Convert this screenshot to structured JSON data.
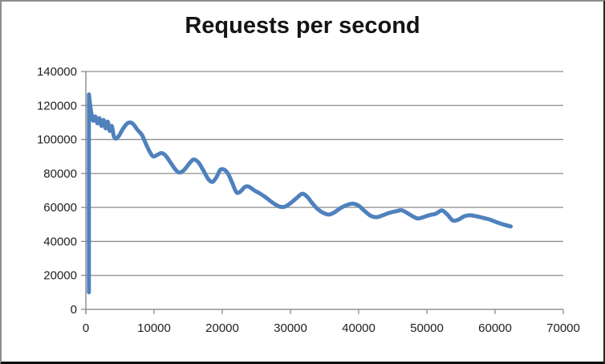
{
  "chart_data": {
    "type": "line",
    "title": "Requests per second",
    "xlabel": "",
    "ylabel": "",
    "xlim": [
      0,
      70000
    ],
    "ylim": [
      0,
      140000
    ],
    "x_ticks": [
      0,
      10000,
      20000,
      30000,
      40000,
      50000,
      60000,
      70000
    ],
    "y_ticks": [
      0,
      20000,
      40000,
      60000,
      80000,
      100000,
      120000,
      140000
    ],
    "grid": "horizontal",
    "legend_position": "none",
    "series": [
      {
        "name": "Requests per second",
        "color": "#4F81BD",
        "stroke_width": 5,
        "smooth": true,
        "points": [
          [
            450,
            10000
          ],
          [
            450,
            126500
          ],
          [
            700,
            118000
          ],
          [
            900,
            113500
          ],
          [
            1100,
            111000
          ],
          [
            1400,
            113500
          ],
          [
            1700,
            109500
          ],
          [
            2000,
            112500
          ],
          [
            2300,
            108000
          ],
          [
            2600,
            111500
          ],
          [
            2900,
            106500
          ],
          [
            3200,
            110500
          ],
          [
            3500,
            105000
          ],
          [
            3800,
            108000
          ],
          [
            4100,
            102000
          ],
          [
            4450,
            100500
          ],
          [
            4900,
            102500
          ],
          [
            5400,
            106000
          ],
          [
            6000,
            109200
          ],
          [
            6500,
            110000
          ],
          [
            7000,
            108800
          ],
          [
            7600,
            105500
          ],
          [
            8200,
            102800
          ],
          [
            8800,
            97500
          ],
          [
            9400,
            92500
          ],
          [
            9900,
            90000
          ],
          [
            10500,
            91000
          ],
          [
            11100,
            92000
          ],
          [
            11700,
            90500
          ],
          [
            12400,
            86500
          ],
          [
            13100,
            82500
          ],
          [
            13700,
            80500
          ],
          [
            14400,
            82000
          ],
          [
            15100,
            85500
          ],
          [
            15800,
            88200
          ],
          [
            16500,
            86500
          ],
          [
            17200,
            82000
          ],
          [
            17900,
            77000
          ],
          [
            18500,
            75000
          ],
          [
            19100,
            77500
          ],
          [
            19700,
            82000
          ],
          [
            20300,
            82200
          ],
          [
            20900,
            79500
          ],
          [
            21500,
            74000
          ],
          [
            22100,
            68800
          ],
          [
            22700,
            69500
          ],
          [
            23300,
            72000
          ],
          [
            23900,
            72200
          ],
          [
            24700,
            70000
          ],
          [
            25600,
            68000
          ],
          [
            26500,
            65500
          ],
          [
            27500,
            62500
          ],
          [
            28400,
            60500
          ],
          [
            29200,
            60500
          ],
          [
            30000,
            62500
          ],
          [
            30900,
            65500
          ],
          [
            31700,
            68000
          ],
          [
            32400,
            66500
          ],
          [
            33200,
            62500
          ],
          [
            34000,
            59000
          ],
          [
            34800,
            56800
          ],
          [
            35600,
            55800
          ],
          [
            36400,
            57000
          ],
          [
            37300,
            59500
          ],
          [
            38200,
            61300
          ],
          [
            39100,
            62200
          ],
          [
            40000,
            61000
          ],
          [
            40900,
            57800
          ],
          [
            41800,
            55000
          ],
          [
            42700,
            54300
          ],
          [
            43600,
            55500
          ],
          [
            44500,
            56800
          ],
          [
            45500,
            57800
          ],
          [
            46300,
            58300
          ],
          [
            47100,
            56800
          ],
          [
            47900,
            54800
          ],
          [
            48700,
            53500
          ],
          [
            49500,
            54300
          ],
          [
            50400,
            55500
          ],
          [
            51300,
            56300
          ],
          [
            52200,
            58200
          ],
          [
            53000,
            55800
          ],
          [
            53800,
            52300
          ],
          [
            54600,
            52800
          ],
          [
            55500,
            54800
          ],
          [
            56300,
            55400
          ],
          [
            57200,
            54800
          ],
          [
            58100,
            54000
          ],
          [
            59100,
            53000
          ],
          [
            60100,
            51500
          ],
          [
            61200,
            50000
          ],
          [
            62300,
            48800
          ]
        ]
      }
    ]
  },
  "colors": {
    "line": "#4F81BD",
    "gridline": "#8d8d8d",
    "axis": "#7f7f7f",
    "tick": "#8d8d8d",
    "label_text": "#1f1f1f",
    "title_text": "#141414",
    "background": "#ffffff"
  }
}
